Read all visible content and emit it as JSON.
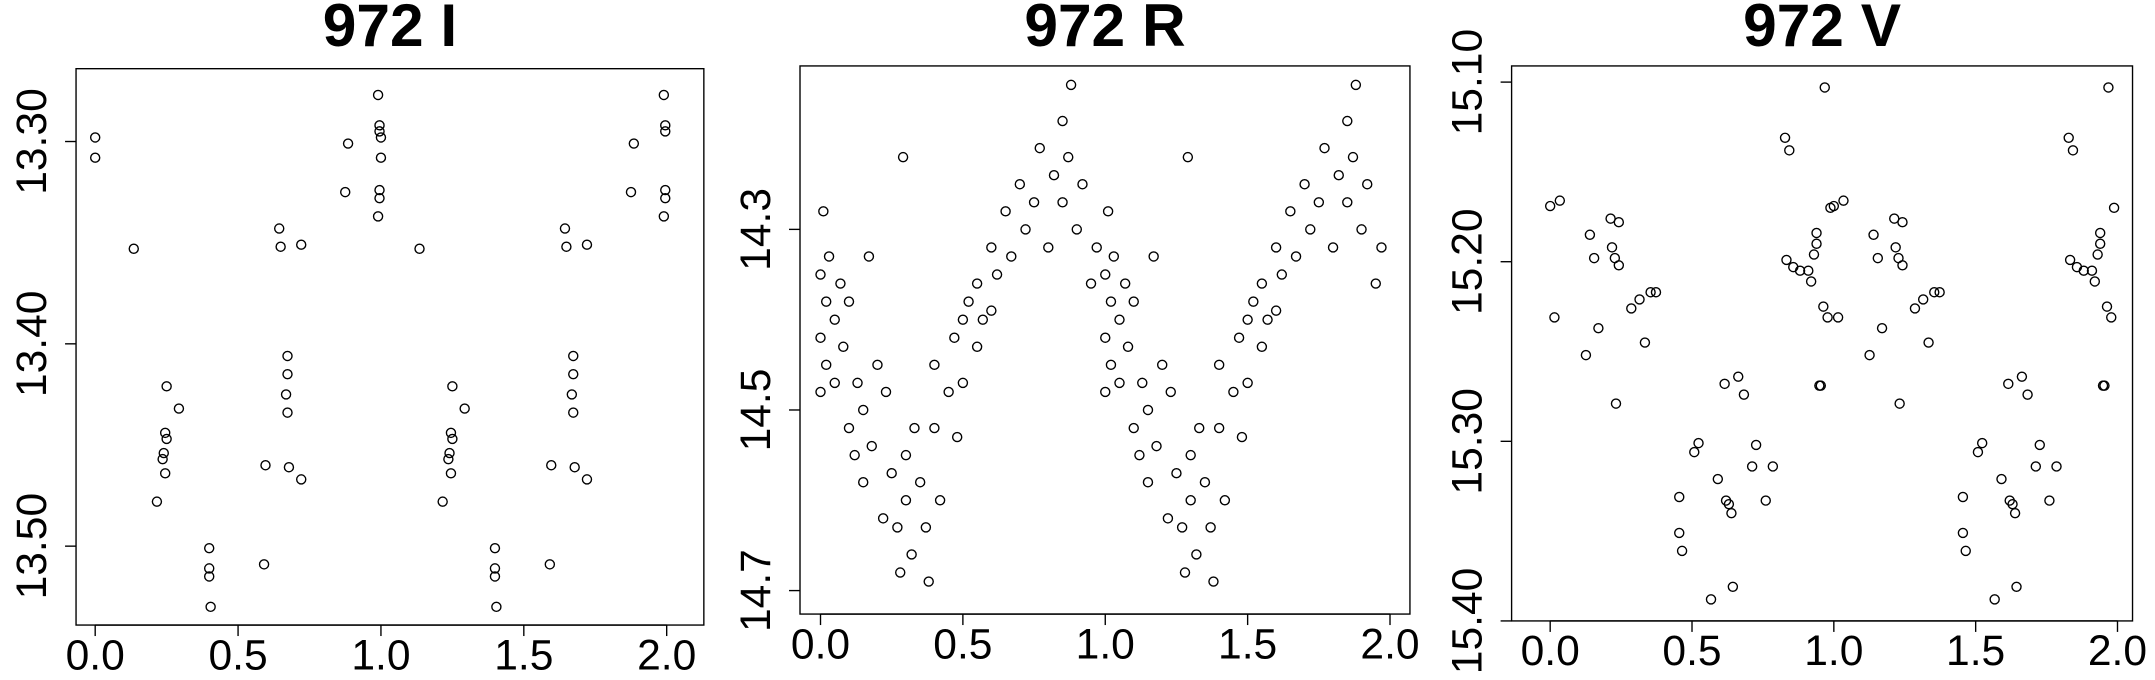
{
  "chart_data": [
    {
      "type": "scatter",
      "title": "972 I",
      "color": "#000000",
      "x": [
        0,
        0,
        0.135,
        0.216,
        0.25,
        0.245,
        0.25,
        0.24,
        0.236,
        0.245,
        0.293,
        0.399,
        0.399,
        0.399,
        0.404,
        0.596,
        0.591,
        0.644,
        0.649,
        0.673,
        0.673,
        0.668,
        0.673,
        0.678,
        0.721,
        0.721,
        0.885,
        0.875,
        0.99,
        0.995,
        0.995,
        0.995,
        0.995,
        0.99,
        1,
        1,
        1.135,
        1.216,
        1.25,
        1.245,
        1.25,
        1.24,
        1.236,
        1.245,
        1.293,
        1.399,
        1.399,
        1.399,
        1.404,
        1.596,
        1.591,
        1.644,
        1.649,
        1.673,
        1.673,
        1.668,
        1.673,
        1.678,
        1.721,
        1.721,
        1.885,
        1.875,
        1.99,
        1.995,
        1.995,
        1.995,
        1.995,
        1.99
      ],
      "values": [
        13.298,
        13.308,
        13.353,
        13.478,
        13.421,
        13.444,
        13.447,
        13.454,
        13.457,
        13.464,
        13.432,
        13.501,
        13.511,
        13.515,
        13.53,
        13.46,
        13.509,
        13.343,
        13.352,
        13.406,
        13.415,
        13.425,
        13.434,
        13.461,
        13.351,
        13.467,
        13.301,
        13.325,
        13.277,
        13.292,
        13.295,
        13.324,
        13.328,
        13.337,
        13.298,
        13.308,
        13.353,
        13.478,
        13.421,
        13.444,
        13.447,
        13.454,
        13.457,
        13.464,
        13.432,
        13.501,
        13.511,
        13.515,
        13.53,
        13.46,
        13.509,
        13.343,
        13.352,
        13.406,
        13.415,
        13.425,
        13.434,
        13.461,
        13.351,
        13.467,
        13.301,
        13.325,
        13.277,
        13.292,
        13.295,
        13.324,
        13.328,
        13.337
      ],
      "xlim": [
        -0.067,
        2.13
      ],
      "ylim": [
        13.539,
        13.264
      ],
      "xticks": [
        {
          "value": 0,
          "label": "0.0"
        },
        0.5,
        {
          "value": 1,
          "label": "1.0"
        },
        1.5,
        {
          "value": 2,
          "label": "2.0"
        }
      ],
      "yticks": [
        {
          "value": 13.3,
          "label": "13.30"
        },
        {
          "value": 13.4,
          "label": "13.40"
        },
        {
          "value": 13.5,
          "label": "13.50"
        }
      ]
    },
    {
      "type": "scatter",
      "title": "972 R",
      "color": "#000000",
      "x": [
        0,
        0,
        0,
        0.01,
        0.02,
        0.02,
        0.03,
        0.05,
        0.05,
        0.07,
        0.08,
        0.1,
        0.1,
        0.12,
        0.13,
        0.15,
        0.15,
        0.17,
        0.18,
        0.2,
        0.22,
        0.23,
        0.25,
        0.27,
        0.28,
        0.29,
        0.3,
        0.3,
        0.32,
        0.33,
        0.35,
        0.37,
        0.38,
        0.4,
        0.4,
        0.42,
        0.45,
        0.47,
        0.48,
        0.5,
        0.5,
        0.52,
        0.55,
        0.55,
        0.57,
        0.6,
        0.6,
        0.62,
        0.65,
        0.67,
        0.7,
        0.72,
        0.75,
        0.77,
        0.8,
        0.82,
        0.85,
        0.85,
        0.87,
        0.88,
        0.9,
        0.92,
        0.95,
        0.97,
        1,
        1,
        1,
        1.01,
        1.02,
        1.02,
        1.03,
        1.05,
        1.05,
        1.07,
        1.08,
        1.1,
        1.1,
        1.12,
        1.13,
        1.15,
        1.15,
        1.17,
        1.18,
        1.2,
        1.22,
        1.23,
        1.25,
        1.27,
        1.28,
        1.29,
        1.3,
        1.3,
        1.32,
        1.33,
        1.35,
        1.37,
        1.38,
        1.4,
        1.4,
        1.42,
        1.45,
        1.47,
        1.48,
        1.5,
        1.5,
        1.52,
        1.55,
        1.55,
        1.57,
        1.6,
        1.6,
        1.62,
        1.65,
        1.67,
        1.7,
        1.72,
        1.75,
        1.77,
        1.8,
        1.82,
        1.85,
        1.85,
        1.87,
        1.88,
        1.9,
        1.92,
        1.95,
        1.97
      ],
      "values": [
        14.35,
        14.42,
        14.48,
        14.28,
        14.38,
        14.45,
        14.33,
        14.4,
        14.47,
        14.36,
        14.43,
        14.52,
        14.38,
        14.55,
        14.47,
        14.58,
        14.5,
        14.33,
        14.54,
        14.45,
        14.62,
        14.48,
        14.57,
        14.63,
        14.68,
        14.22,
        14.6,
        14.55,
        14.66,
        14.52,
        14.58,
        14.63,
        14.69,
        14.52,
        14.45,
        14.6,
        14.48,
        14.42,
        14.53,
        14.4,
        14.47,
        14.38,
        14.43,
        14.36,
        14.4,
        14.32,
        14.39,
        14.35,
        14.28,
        14.33,
        14.25,
        14.3,
        14.27,
        14.21,
        14.32,
        14.24,
        14.18,
        14.27,
        14.22,
        14.14,
        14.3,
        14.25,
        14.36,
        14.32,
        14.35,
        14.42,
        14.48,
        14.28,
        14.38,
        14.45,
        14.33,
        14.4,
        14.47,
        14.36,
        14.43,
        14.52,
        14.38,
        14.55,
        14.47,
        14.58,
        14.5,
        14.33,
        14.54,
        14.45,
        14.62,
        14.48,
        14.57,
        14.63,
        14.68,
        14.22,
        14.6,
        14.55,
        14.66,
        14.52,
        14.58,
        14.63,
        14.69,
        14.52,
        14.45,
        14.6,
        14.48,
        14.42,
        14.53,
        14.4,
        14.47,
        14.38,
        14.43,
        14.36,
        14.4,
        14.32,
        14.39,
        14.35,
        14.28,
        14.33,
        14.25,
        14.3,
        14.27,
        14.21,
        14.32,
        14.24,
        14.18,
        14.27,
        14.22,
        14.14,
        14.3,
        14.25,
        14.36,
        14.32
      ],
      "xlim": [
        -0.072,
        2.07
      ],
      "ylim": [
        14.726,
        14.119
      ],
      "xticks": [
        {
          "value": 0,
          "label": "0.0"
        },
        0.5,
        {
          "value": 1,
          "label": "1.0"
        },
        1.5,
        {
          "value": 2,
          "label": "2.0"
        }
      ],
      "yticks": [
        14.3,
        14.5,
        14.7
      ]
    },
    {
      "type": "scatter",
      "title": "972 V",
      "color": "#000000",
      "x": [
        0,
        0.034,
        0.015,
        0.126,
        0.14,
        0.155,
        0.17,
        0.213,
        0.218,
        0.232,
        0.228,
        0.242,
        0.242,
        0.286,
        0.315,
        0.334,
        0.354,
        0.373,
        0.455,
        0.455,
        0.465,
        0.508,
        0.523,
        0.567,
        0.591,
        0.62,
        0.63,
        0.639,
        0.644,
        0.615,
        0.663,
        0.683,
        0.712,
        0.726,
        0.76,
        0.785,
        0.828,
        0.843,
        0.833,
        0.857,
        0.881,
        0.91,
        0.92,
        0.93,
        0.939,
        0.939,
        0.949,
        0.954,
        0.963,
        0.968,
        0.978,
        0.988,
        1,
        1.034,
        1.015,
        1.126,
        1.14,
        1.155,
        1.17,
        1.213,
        1.218,
        1.232,
        1.228,
        1.242,
        1.242,
        1.286,
        1.315,
        1.334,
        1.354,
        1.373,
        1.455,
        1.455,
        1.465,
        1.508,
        1.523,
        1.567,
        1.591,
        1.62,
        1.63,
        1.639,
        1.644,
        1.615,
        1.663,
        1.683,
        1.712,
        1.726,
        1.76,
        1.785,
        1.828,
        1.843,
        1.833,
        1.857,
        1.881,
        1.91,
        1.92,
        1.93,
        1.939,
        1.939,
        1.949,
        1.954,
        1.963,
        1.968,
        1.978,
        1.988
      ],
      "values": [
        15.169,
        15.166,
        15.231,
        15.252,
        15.185,
        15.198,
        15.237,
        15.176,
        15.192,
        15.279,
        15.198,
        15.202,
        15.178,
        15.226,
        15.221,
        15.245,
        15.217,
        15.217,
        15.331,
        15.351,
        15.361,
        15.306,
        15.301,
        15.388,
        15.321,
        15.333,
        15.335,
        15.34,
        15.381,
        15.268,
        15.264,
        15.274,
        15.314,
        15.302,
        15.333,
        15.314,
        15.131,
        15.138,
        15.199,
        15.203,
        15.205,
        15.205,
        15.211,
        15.196,
        15.184,
        15.19,
        15.269,
        15.269,
        15.225,
        15.103,
        15.231,
        15.17,
        15.169,
        15.166,
        15.231,
        15.252,
        15.185,
        15.198,
        15.237,
        15.176,
        15.192,
        15.279,
        15.198,
        15.202,
        15.178,
        15.226,
        15.221,
        15.245,
        15.217,
        15.217,
        15.331,
        15.351,
        15.361,
        15.306,
        15.301,
        15.388,
        15.321,
        15.333,
        15.335,
        15.34,
        15.381,
        15.268,
        15.264,
        15.274,
        15.314,
        15.302,
        15.333,
        15.314,
        15.131,
        15.138,
        15.199,
        15.203,
        15.205,
        15.205,
        15.211,
        15.196,
        15.184,
        15.19,
        15.269,
        15.269,
        15.225,
        15.103,
        15.231,
        15.17
      ],
      "xlim": [
        -0.136,
        2.053
      ],
      "ylim": [
        15.4,
        15.091
      ],
      "xticks": [
        {
          "value": 0,
          "label": "0.0"
        },
        0.5,
        {
          "value": 1,
          "label": "1.0"
        },
        1.5,
        {
          "value": 2,
          "label": "2.0"
        }
      ],
      "yticks": [
        {
          "value": 15.1,
          "label": "15.10"
        },
        {
          "value": 15.2,
          "label": "15.20"
        },
        {
          "value": 15.3,
          "label": "15.30"
        },
        {
          "value": 15.4,
          "label": "15.40"
        }
      ]
    }
  ]
}
